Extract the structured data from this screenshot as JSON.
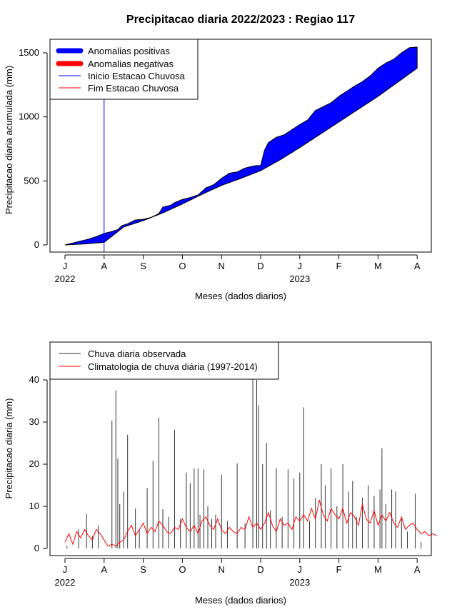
{
  "title": "Precipitacao diaria 2022/2023 : Regiao 117",
  "chart_data": [
    {
      "type": "area",
      "ylabel": "Precipitacao diaria acumulada (mm)",
      "xlabel": "Meses (dados diarios)",
      "ylim": [
        0,
        1550
      ],
      "yticks": [
        0,
        500,
        1000,
        1500
      ],
      "months": [
        "J",
        "A",
        "S",
        "O",
        "N",
        "D",
        "J",
        "F",
        "M",
        "A"
      ],
      "years": [
        {
          "label": "2022",
          "month_index": 0
        },
        {
          "label": "2023",
          "month_index": 6
        }
      ],
      "start_rainy_season_month": 1.0,
      "legend": [
        {
          "label": "Anomalias positivas",
          "color": "#0000ff",
          "style": "thick"
        },
        {
          "label": "Anomalias negativas",
          "color": "#ff0000",
          "style": "thick"
        },
        {
          "label": "Inicio Estacao Chuvosa",
          "color": "#0000ff",
          "style": "thin"
        },
        {
          "label": "Fim Estacao Chuvosa",
          "color": "#ff0000",
          "style": "thin"
        }
      ],
      "series": [
        {
          "name": "Observado acumulado",
          "x": [
            0.0,
            0.2,
            0.4,
            0.6,
            0.8,
            1.0,
            1.2,
            1.35,
            1.45,
            1.6,
            1.8,
            2.0,
            2.2,
            2.4,
            2.5,
            2.7,
            2.8,
            3.0,
            3.2,
            3.4,
            3.6,
            3.8,
            4.0,
            4.2,
            4.4,
            4.6,
            4.8,
            4.9,
            5.0,
            5.1,
            5.2,
            5.4,
            5.6,
            5.8,
            6.0,
            6.2,
            6.4,
            6.6,
            6.8,
            7.0,
            7.2,
            7.4,
            7.6,
            7.8,
            8.0,
            8.2,
            8.4,
            8.6,
            8.8,
            9.0
          ],
          "values": [
            0,
            15,
            30,
            45,
            65,
            90,
            105,
            120,
            150,
            165,
            195,
            200,
            215,
            245,
            295,
            310,
            330,
            355,
            370,
            390,
            445,
            470,
            520,
            560,
            570,
            600,
            615,
            620,
            620,
            740,
            800,
            840,
            860,
            900,
            940,
            975,
            1050,
            1080,
            1110,
            1160,
            1200,
            1240,
            1275,
            1320,
            1380,
            1420,
            1450,
            1500,
            1540,
            1545
          ]
        },
        {
          "name": "Climatologia acumulada",
          "x": [
            0.0,
            0.5,
            1.0,
            1.5,
            2.0,
            2.5,
            3.0,
            3.5,
            4.0,
            4.5,
            5.0,
            5.5,
            6.0,
            6.5,
            7.0,
            7.5,
            8.0,
            8.5,
            9.0
          ],
          "values": [
            0,
            8,
            20,
            140,
            190,
            250,
            320,
            395,
            465,
            520,
            580,
            665,
            760,
            860,
            960,
            1060,
            1160,
            1270,
            1380
          ]
        }
      ]
    },
    {
      "type": "bar",
      "ylabel": "Precipitacao diaria (mm)",
      "xlabel": "Meses (dados diarios)",
      "ylim": [
        0,
        48
      ],
      "yticks": [
        0,
        10,
        20,
        30,
        40
      ],
      "months": [
        "J",
        "A",
        "S",
        "O",
        "N",
        "D",
        "J",
        "F",
        "M",
        "A"
      ],
      "years": [
        {
          "label": "2022",
          "month_index": 0
        },
        {
          "label": "2023",
          "month_index": 6
        }
      ],
      "legend": [
        {
          "label": "Chuva diaria observada",
          "color": "#333333"
        },
        {
          "label": "Climatologia de chuva diária (1997-2014)",
          "color": "#ff0000"
        }
      ],
      "series": [
        {
          "name": "Chuva diaria observada",
          "x": [
            0.05,
            0.35,
            0.55,
            0.7,
            0.85,
            1.2,
            1.3,
            1.35,
            1.4,
            1.5,
            1.6,
            1.8,
            1.9,
            2.1,
            2.25,
            2.4,
            2.5,
            2.65,
            2.8,
            2.95,
            3.1,
            3.2,
            3.3,
            3.4,
            3.45,
            3.55,
            3.65,
            3.75,
            3.85,
            4.0,
            4.15,
            4.4,
            4.6,
            4.8,
            4.9,
            4.95,
            5.05,
            5.15,
            5.25,
            5.4,
            5.55,
            5.7,
            5.85,
            6.0,
            6.1,
            6.25,
            6.4,
            6.55,
            6.65,
            6.8,
            6.95,
            7.1,
            7.25,
            7.35,
            7.45,
            7.6,
            7.75,
            7.9,
            8.05,
            8.1,
            8.2,
            8.35,
            8.45,
            8.6,
            8.75,
            8.95,
            9.1
          ],
          "values": [
            0.6,
            4.5,
            8.2,
            3.0,
            5.5,
            30.3,
            37.5,
            21.3,
            10.5,
            13.5,
            27.0,
            9.5,
            4.5,
            14.3,
            20.8,
            31.0,
            9.3,
            7.5,
            28.2,
            7.0,
            18.0,
            15.5,
            19.0,
            19.0,
            8.0,
            18.8,
            10.0,
            7.0,
            8.0,
            17.5,
            6.5,
            20.2,
            6.0,
            47.0,
            40.0,
            34.0,
            20.0,
            25.0,
            9.0,
            19.0,
            7.5,
            18.8,
            16.5,
            18.0,
            33.5,
            6.5,
            12.0,
            20.0,
            15.0,
            19.0,
            10.0,
            20.0,
            13.5,
            16.0,
            7.5,
            12.0,
            15.0,
            12.5,
            14.0,
            23.8,
            10.5,
            14.0,
            13.5,
            7.0,
            4.0,
            13.0,
            1.5
          ]
        },
        {
          "name": "Climatologia de chuva diária (1997-2014)",
          "x": [
            0.0,
            0.1,
            0.2,
            0.3,
            0.4,
            0.5,
            0.6,
            0.7,
            0.8,
            0.9,
            1.0,
            1.1,
            1.2,
            1.3,
            1.4,
            1.5,
            1.6,
            1.7,
            1.8,
            1.9,
            2.0,
            2.1,
            2.2,
            2.3,
            2.4,
            2.5,
            2.6,
            2.7,
            2.8,
            2.9,
            3.0,
            3.1,
            3.2,
            3.3,
            3.4,
            3.5,
            3.6,
            3.7,
            3.8,
            3.9,
            4.0,
            4.1,
            4.2,
            4.3,
            4.4,
            4.5,
            4.6,
            4.7,
            4.8,
            4.9,
            5.0,
            5.1,
            5.2,
            5.3,
            5.4,
            5.5,
            5.6,
            5.7,
            5.8,
            5.9,
            6.0,
            6.1,
            6.2,
            6.3,
            6.4,
            6.5,
            6.6,
            6.7,
            6.8,
            6.9,
            7.0,
            7.1,
            7.2,
            7.3,
            7.4,
            7.5,
            7.6,
            7.7,
            7.8,
            7.9,
            8.0,
            8.1,
            8.2,
            8.3,
            8.4,
            8.5,
            8.6,
            8.7,
            8.8,
            8.9,
            9.0,
            9.1,
            9.2,
            9.3,
            9.4,
            9.5
          ],
          "values": [
            1.5,
            3.5,
            1.0,
            4.0,
            2.5,
            4.5,
            3.0,
            2.0,
            4.5,
            3.5,
            2.0,
            0.5,
            1.0,
            0.5,
            1.5,
            2.0,
            4.0,
            5.5,
            3.0,
            4.5,
            6.0,
            3.5,
            5.0,
            4.0,
            6.5,
            5.5,
            4.0,
            3.5,
            5.0,
            4.5,
            7.0,
            5.0,
            4.0,
            5.5,
            3.5,
            6.5,
            7.5,
            5.5,
            4.5,
            7.0,
            4.5,
            3.5,
            5.0,
            4.0,
            3.5,
            5.0,
            4.5,
            7.5,
            5.0,
            6.0,
            4.5,
            6.0,
            8.5,
            5.5,
            4.0,
            7.0,
            5.5,
            6.0,
            4.5,
            7.5,
            6.5,
            8.0,
            6.5,
            9.5,
            7.0,
            11.5,
            8.0,
            6.5,
            9.5,
            8.0,
            7.0,
            9.5,
            6.0,
            8.5,
            7.5,
            5.5,
            10.5,
            7.0,
            6.0,
            9.0,
            5.5,
            8.0,
            6.5,
            8.5,
            6.0,
            5.0,
            7.5,
            4.5,
            5.5,
            6.0,
            4.5,
            3.5,
            4.0,
            3.0,
            3.5,
            3.0
          ]
        }
      ]
    }
  ]
}
